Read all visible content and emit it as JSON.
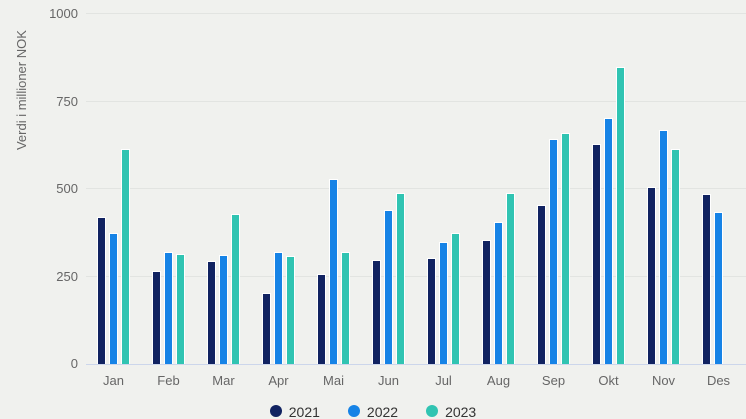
{
  "chart_data": {
    "type": "bar",
    "title": "",
    "ylabel": "Verdi i millioner NOK",
    "xlabel": "",
    "ylim": [
      0,
      1000
    ],
    "yticks": [
      0,
      250,
      500,
      750,
      1000
    ],
    "grid": true,
    "legend_position": "bottom",
    "categories": [
      "Jan",
      "Feb",
      "Mar",
      "Apr",
      "Mai",
      "Jun",
      "Jul",
      "Aug",
      "Sep",
      "Okt",
      "Nov",
      "Des"
    ],
    "series": [
      {
        "name": "2021",
        "color": "#112361",
        "values": [
          420,
          265,
          293,
          204,
          256,
          296,
          302,
          353,
          455,
          628,
          507,
          486
        ]
      },
      {
        "name": "2022",
        "color": "#1683e6",
        "values": [
          375,
          320,
          311,
          319,
          530,
          440,
          348,
          407,
          644,
          703,
          669,
          433
        ]
      },
      {
        "name": "2023",
        "color": "#30c4b2",
        "values": [
          615,
          315,
          428,
          308,
          319,
          490,
          373,
          489,
          659,
          848,
          614,
          null
        ]
      }
    ]
  },
  "colors": {
    "background": "#f0f1ee",
    "gridline": "#e2e4e1",
    "axis_line": "#ccd6eb",
    "tick_text": "#666666",
    "legend_text": "#333333"
  }
}
